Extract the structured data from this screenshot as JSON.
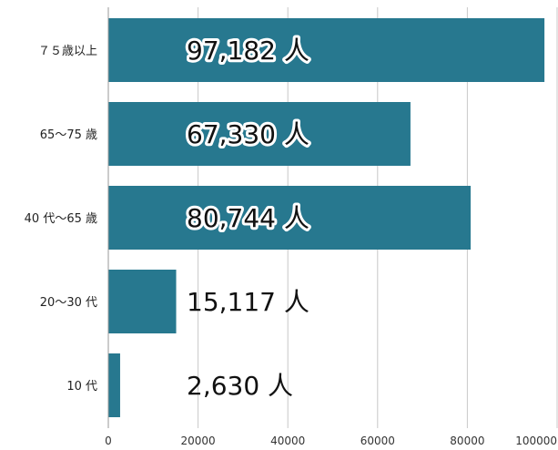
{
  "chart_data": {
    "type": "bar",
    "orientation": "horizontal",
    "categories": [
      "７５歳以上",
      "65～75 歳",
      "40 代～65 歳",
      "20～30 代",
      "10 代"
    ],
    "values": [
      97182,
      67330,
      80744,
      15117,
      2630
    ],
    "value_labels": [
      "97,182 人",
      "67,330 人",
      "80,744 人",
      "15,117 人",
      "2,630 人"
    ],
    "bar_color": "#27788f",
    "xlim": [
      0,
      100000
    ],
    "x_ticks": [
      0,
      20000,
      40000,
      60000,
      80000,
      100000
    ],
    "x_tick_labels": [
      "0",
      "20000",
      "40000",
      "60000",
      "80000",
      "100000"
    ],
    "grid": true,
    "title": "",
    "xlabel": "",
    "ylabel": ""
  }
}
